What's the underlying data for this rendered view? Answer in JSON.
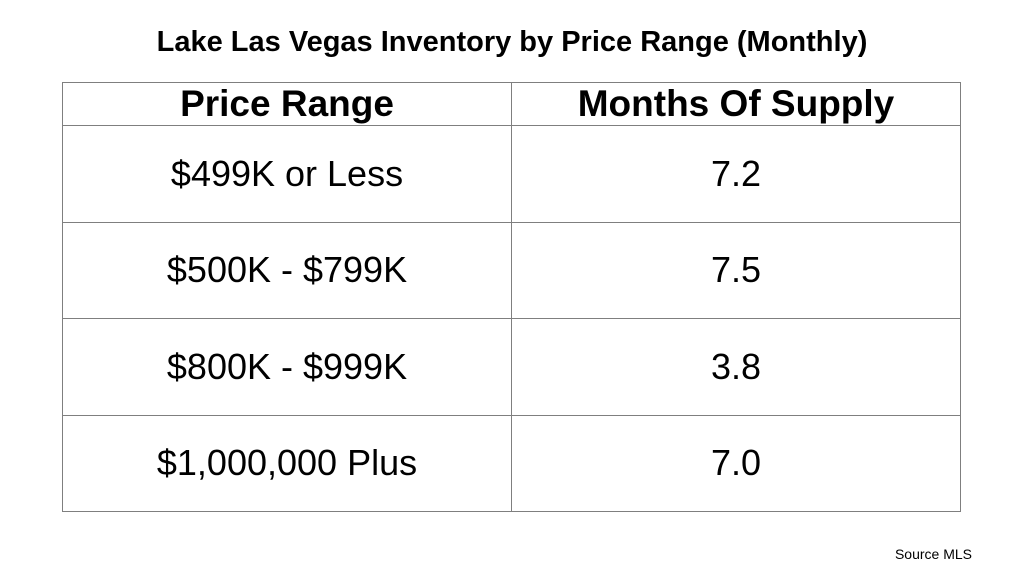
{
  "title": "Lake Las Vegas Inventory by Price Range (Monthly)",
  "source": "Source MLS",
  "table": {
    "headers": [
      "Price Range",
      "Months Of Supply"
    ],
    "rows": [
      {
        "price_range": "$499K or Less",
        "months_of_supply": "7.2"
      },
      {
        "price_range": "$500K - $799K",
        "months_of_supply": "7.5"
      },
      {
        "price_range": "$800K - $999K",
        "months_of_supply": "3.8"
      },
      {
        "price_range": "$1,000,000 Plus",
        "months_of_supply": "7.0"
      }
    ]
  },
  "chart_data": {
    "type": "table",
    "title": "Lake Las Vegas Inventory by Price Range (Monthly)",
    "columns": [
      "Price Range",
      "Months Of Supply"
    ],
    "categories": [
      "$499K or Less",
      "$500K - $799K",
      "$800K - $999K",
      "$1,000,000 Plus"
    ],
    "values": [
      7.2,
      7.5,
      3.8,
      7.0
    ],
    "source": "Source MLS",
    "layout": {
      "grid": true,
      "border_color": "#7f7f7f",
      "background": "#ffffff",
      "text_color": "#000000"
    }
  }
}
